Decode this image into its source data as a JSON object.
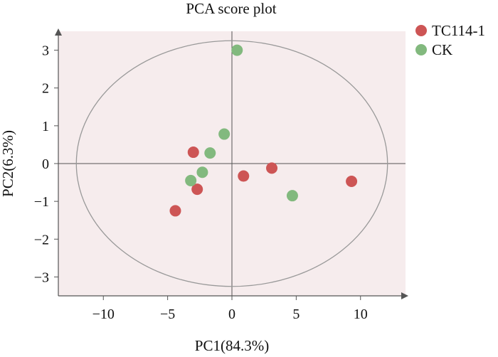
{
  "chart_data": {
    "type": "scatter",
    "title": "PCA score plot",
    "xlabel": "PC1(84.3%)",
    "ylabel": "PC2(6.3%)",
    "xlim": [
      -13.5,
      13.5
    ],
    "ylim": [
      -3.5,
      3.5
    ],
    "xticks": [
      -10,
      -5,
      0,
      5,
      10
    ],
    "yticks": [
      3,
      2,
      1,
      0,
      -1,
      -2,
      -3
    ],
    "xtick_labels": [
      "−10",
      "−5",
      "0",
      "5",
      "10"
    ],
    "ytick_labels": [
      "3",
      "2",
      "1",
      "0",
      "−1",
      "−2",
      "−3"
    ],
    "ellipse": {
      "cx": 0,
      "cy": 0,
      "rx": 12.1,
      "ry": 3.25
    },
    "legend_position": "top-right outside",
    "colors": {
      "background": "#f6eced",
      "TC114-1": "#cd5555",
      "CK": "#82b97e",
      "ellipse": "#999999",
      "axes": "#555555"
    },
    "series": [
      {
        "name": "TC114-1",
        "color": "#cd5555",
        "points": [
          [
            -3.0,
            0.3
          ],
          [
            -2.7,
            -0.68
          ],
          [
            -4.4,
            -1.25
          ],
          [
            0.9,
            -0.33
          ],
          [
            3.1,
            -0.12
          ],
          [
            9.3,
            -0.47
          ]
        ]
      },
      {
        "name": "CK",
        "color": "#82b97e",
        "points": [
          [
            0.4,
            3.0
          ],
          [
            -0.6,
            0.78
          ],
          [
            -1.7,
            0.28
          ],
          [
            -2.3,
            -0.23
          ],
          [
            -3.2,
            -0.45
          ],
          [
            4.7,
            -0.85
          ]
        ]
      }
    ]
  }
}
